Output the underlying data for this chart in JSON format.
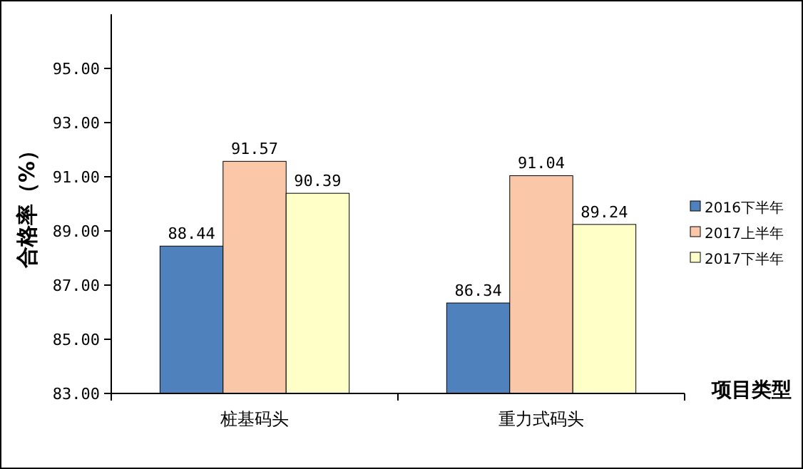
{
  "chart_data": {
    "type": "bar",
    "ylabel": "合格率（%）",
    "xlabel": "项目类型",
    "categories": [
      "桩基码头",
      "重力式码头"
    ],
    "series": [
      {
        "name": "2016下半年",
        "color": "#4f81bd",
        "values": [
          88.44,
          86.34
        ]
      },
      {
        "name": "2017上半年",
        "color": "#fac8a8",
        "values": [
          91.57,
          91.04
        ]
      },
      {
        "name": "2017下半年",
        "color": "#ffffc8",
        "values": [
          90.39,
          89.24
        ]
      }
    ],
    "ylim": [
      83,
      97
    ],
    "yticks": [
      {
        "value": 83,
        "label": "83.00"
      },
      {
        "value": 85,
        "label": "85.00"
      },
      {
        "value": 87,
        "label": "87.00"
      },
      {
        "value": 89,
        "label": "89.00"
      },
      {
        "value": 91,
        "label": "91.00"
      },
      {
        "value": 93,
        "label": "93.00"
      },
      {
        "value": 95,
        "label": "95.00"
      }
    ],
    "data_labels": true,
    "grid": false,
    "legend": "right"
  }
}
